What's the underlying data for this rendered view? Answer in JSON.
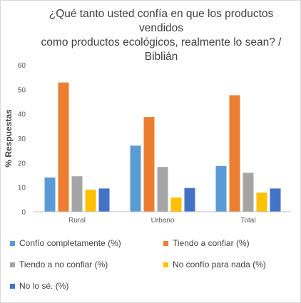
{
  "chart_data": {
    "type": "bar",
    "title_lines": [
      "¿Qué tanto usted confía en que los productos vendidos",
      "como productos ecológicos, realmente lo sean? / Biblián"
    ],
    "xlabel": "",
    "ylabel": "% Respuestas",
    "ylim": [
      0,
      60
    ],
    "yticks": [
      "0",
      "10",
      "20",
      "30",
      "40",
      "50",
      "60"
    ],
    "grid": false,
    "legend_position": "bottom",
    "categories": [
      "Rural",
      "Urbano",
      "Total"
    ],
    "series": [
      {
        "name": "Confío completamente (%)",
        "color": "#5b9bd5",
        "values": [
          14,
          27,
          18.7
        ]
      },
      {
        "name": "Tiendo a confiar (%)",
        "color": "#ed7d31",
        "values": [
          52.8,
          38.7,
          47.6
        ]
      },
      {
        "name": "Tiendo a no confiar (%)",
        "color": "#a5a5a5",
        "values": [
          14.5,
          18.3,
          15.9
        ]
      },
      {
        "name": "No confío para nada (%)",
        "color": "#ffc000",
        "values": [
          9,
          5.8,
          7.8
        ]
      },
      {
        "name": "No lo sé. (%)",
        "color": "#4472c4",
        "values": [
          9.5,
          9.7,
          9.5
        ]
      }
    ]
  }
}
